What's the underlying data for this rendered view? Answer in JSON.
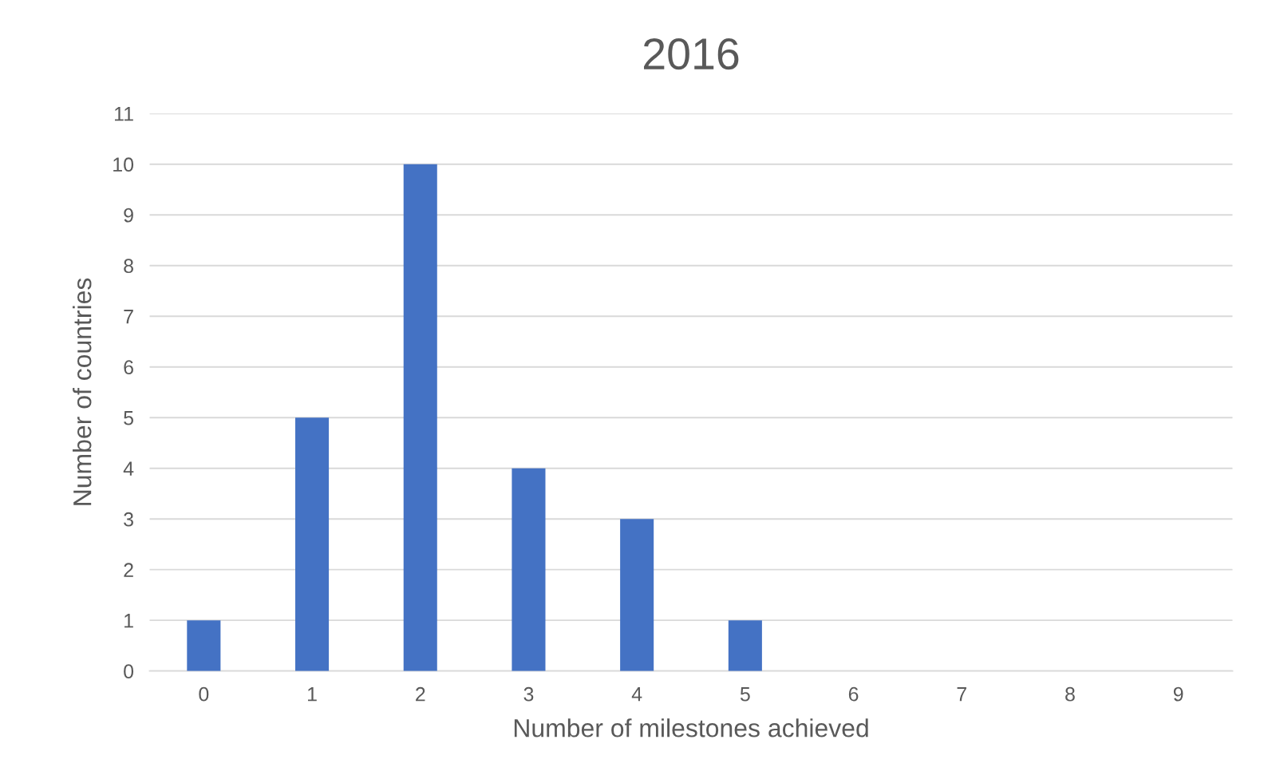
{
  "chart_data": {
    "type": "bar",
    "title": "2016",
    "xlabel": "Number of milestones achieved",
    "ylabel": "Number of countries",
    "categories": [
      "0",
      "1",
      "2",
      "3",
      "4",
      "5",
      "6",
      "7",
      "8",
      "9"
    ],
    "values": [
      1,
      5,
      10,
      4,
      3,
      1,
      0,
      0,
      0,
      0
    ],
    "color": "#4472c4",
    "ylim": [
      0,
      11
    ],
    "yticks": [
      0,
      1,
      2,
      3,
      4,
      5,
      6,
      7,
      8,
      9,
      10,
      11
    ],
    "grid": "y",
    "legend": false
  }
}
